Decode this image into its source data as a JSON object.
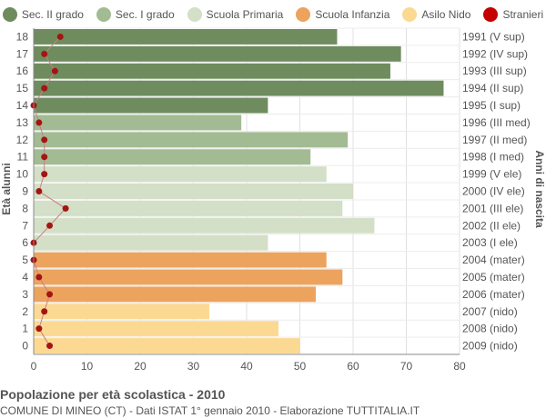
{
  "chart_data": {
    "type": "bar",
    "orientation": "horizontal",
    "title": "Popolazione per età scolastica - 2010",
    "subtitle": "COMUNE DI MINEO (CT) - Dati ISTAT 1° gennaio 2010 - Elaborazione TUTTITALIA.IT",
    "ylabel_left": "Età alunni",
    "ylabel_right": "Anni di nascita",
    "xlim": [
      0,
      80
    ],
    "xticks": [
      "0",
      "10",
      "20",
      "30",
      "40",
      "50",
      "60",
      "70",
      "80"
    ],
    "grid": true,
    "legend_position": "top",
    "legend": [
      {
        "name": "Sec. II grado",
        "color": "#6e8c5e"
      },
      {
        "name": "Sec. I grado",
        "color": "#a3bb92"
      },
      {
        "name": "Scuola Primaria",
        "color": "#d3dfc6"
      },
      {
        "name": "Scuola Infanzia",
        "color": "#eca35e"
      },
      {
        "name": "Asilo Nido",
        "color": "#fcd993"
      },
      {
        "name": "Stranieri",
        "color": "#c50000"
      }
    ],
    "rows": [
      {
        "age": "18",
        "year": "1991 (V sup)",
        "value": 57,
        "stranieri": 5,
        "group": 0
      },
      {
        "age": "17",
        "year": "1992 (IV sup)",
        "value": 69,
        "stranieri": 2,
        "group": 0
      },
      {
        "age": "16",
        "year": "1993 (III sup)",
        "value": 67,
        "stranieri": 4,
        "group": 0
      },
      {
        "age": "15",
        "year": "1994 (II sup)",
        "value": 77,
        "stranieri": 2,
        "group": 0
      },
      {
        "age": "14",
        "year": "1995 (I sup)",
        "value": 44,
        "stranieri": 0,
        "group": 0
      },
      {
        "age": "13",
        "year": "1996 (III med)",
        "value": 39,
        "stranieri": 1,
        "group": 1
      },
      {
        "age": "12",
        "year": "1997 (II med)",
        "value": 59,
        "stranieri": 2,
        "group": 1
      },
      {
        "age": "11",
        "year": "1998 (I med)",
        "value": 52,
        "stranieri": 2,
        "group": 1
      },
      {
        "age": "10",
        "year": "1999 (V ele)",
        "value": 55,
        "stranieri": 2,
        "group": 2
      },
      {
        "age": "9",
        "year": "2000 (IV ele)",
        "value": 60,
        "stranieri": 1,
        "group": 2
      },
      {
        "age": "8",
        "year": "2001 (III ele)",
        "value": 58,
        "stranieri": 6,
        "group": 2
      },
      {
        "age": "7",
        "year": "2002 (II ele)",
        "value": 64,
        "stranieri": 3,
        "group": 2
      },
      {
        "age": "6",
        "year": "2003 (I ele)",
        "value": 44,
        "stranieri": 0,
        "group": 2
      },
      {
        "age": "5",
        "year": "2004 (mater)",
        "value": 55,
        "stranieri": 0,
        "group": 3
      },
      {
        "age": "4",
        "year": "2005 (mater)",
        "value": 58,
        "stranieri": 1,
        "group": 3
      },
      {
        "age": "3",
        "year": "2006 (mater)",
        "value": 53,
        "stranieri": 3,
        "group": 3
      },
      {
        "age": "2",
        "year": "2007 (nido)",
        "value": 33,
        "stranieri": 2,
        "group": 4
      },
      {
        "age": "1",
        "year": "2008 (nido)",
        "value": 46,
        "stranieri": 1,
        "group": 4
      },
      {
        "age": "0",
        "year": "2009 (nido)",
        "value": 50,
        "stranieri": 3,
        "group": 4
      }
    ]
  }
}
